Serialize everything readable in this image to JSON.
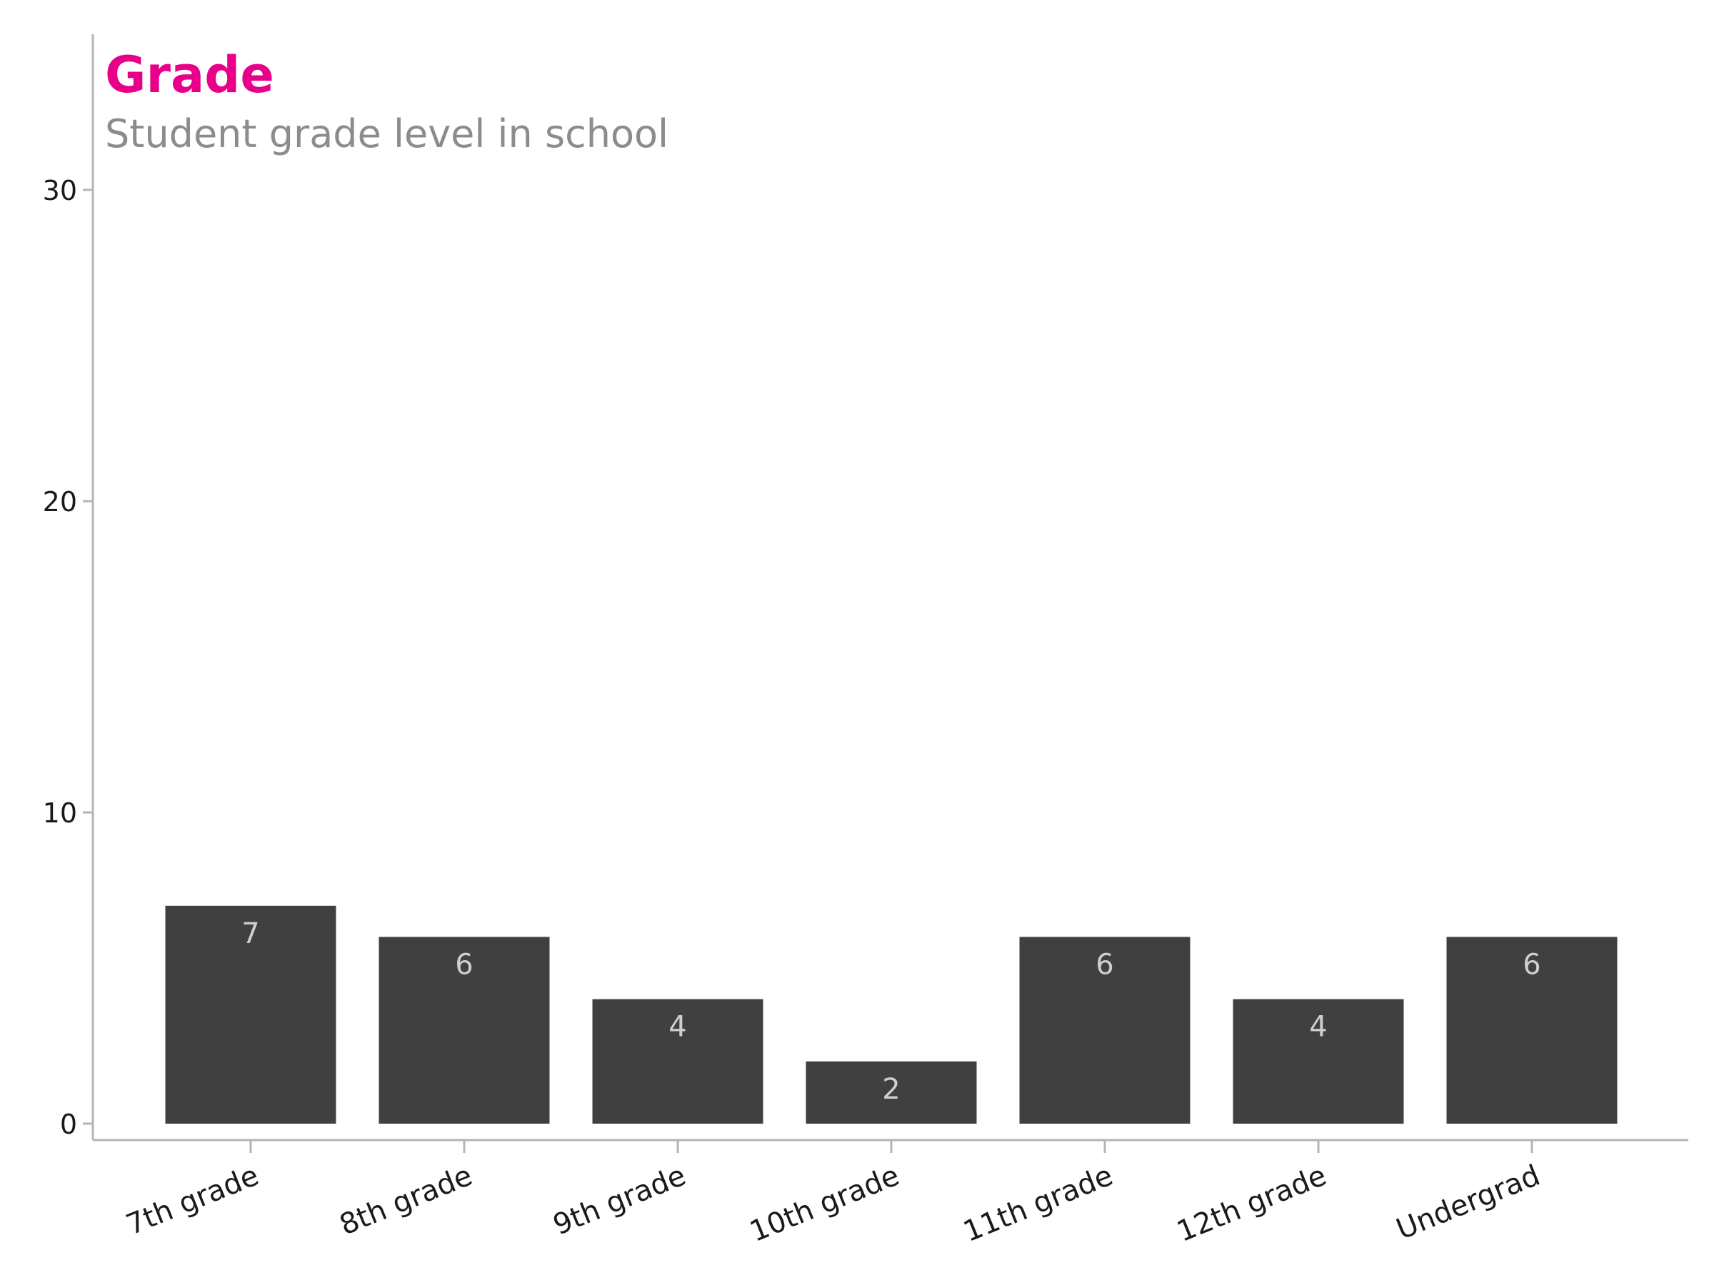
{
  "chart_data": {
    "type": "bar",
    "title": "Grade",
    "subtitle": "Student grade level in school",
    "categories": [
      "7th grade",
      "8th grade",
      "9th grade",
      "10th grade",
      "11th grade",
      "12th grade",
      "Undergrad"
    ],
    "values": [
      7,
      6,
      4,
      2,
      6,
      4,
      6
    ],
    "data_labels": [
      "7",
      "6",
      "4",
      "2",
      "6",
      "4",
      "6"
    ],
    "y_ticks": [
      0,
      10,
      20,
      30
    ],
    "y_tick_labels": [
      "0",
      "10",
      "20",
      "30"
    ],
    "ylim": [
      0,
      35
    ],
    "xlabel": "",
    "ylabel": "",
    "grid": false,
    "legend": "none",
    "x_tick_label_rotation_deg": -22
  },
  "colors": {
    "title": "#e8008a",
    "subtitle": "#8c8c8c",
    "bar": "#404040",
    "data_label": "#cfcfcf",
    "axis": "#b4b4b4",
    "tick_label": "#1a1a1a"
  }
}
